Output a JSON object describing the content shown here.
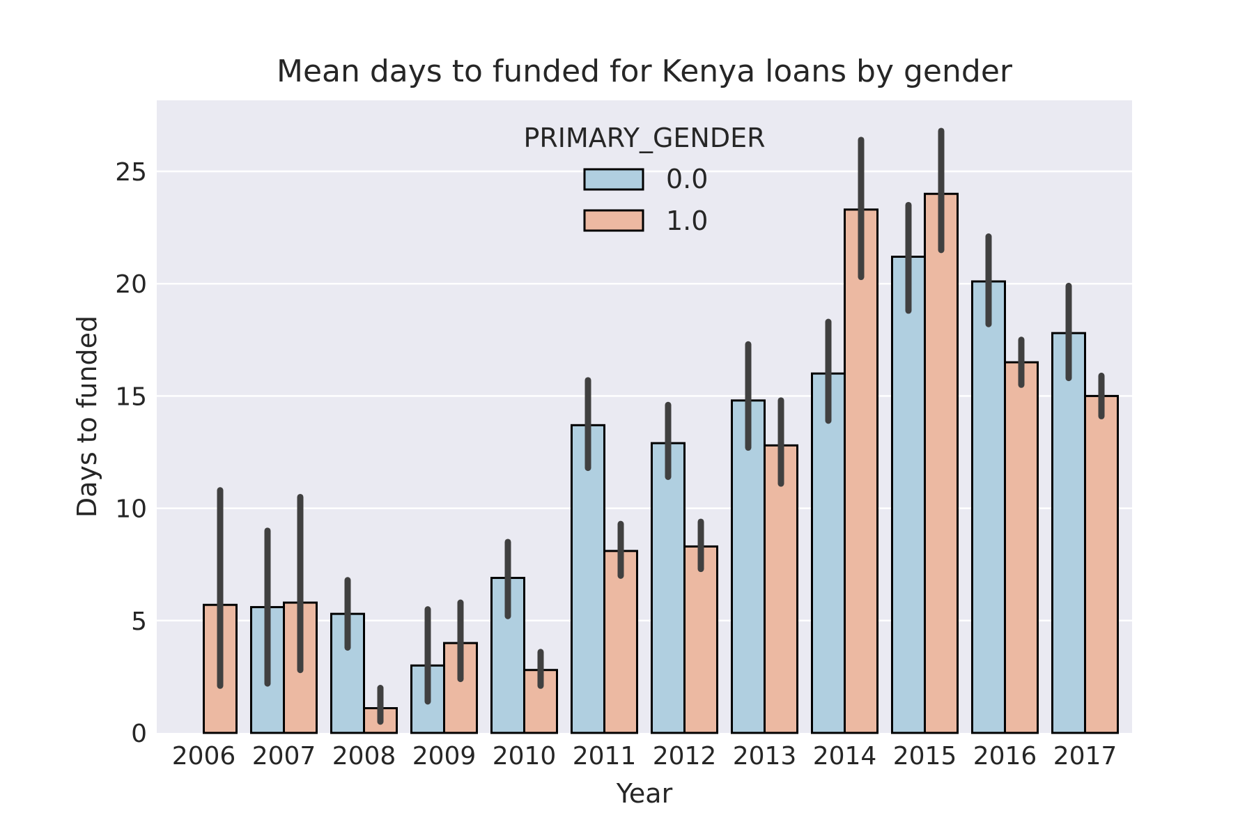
{
  "chart_data": {
    "type": "bar",
    "title": "Mean days to funded for Kenya loans by gender",
    "xlabel": "Year",
    "ylabel": "Days to funded",
    "categories": [
      "2006",
      "2007",
      "2008",
      "2009",
      "2010",
      "2011",
      "2012",
      "2013",
      "2014",
      "2015",
      "2016",
      "2017"
    ],
    "ylim": [
      0,
      28
    ],
    "yticks": [
      0,
      5,
      10,
      15,
      20,
      25
    ],
    "grid": true,
    "legend": {
      "title": "PRIMARY_GENDER",
      "placement": "top-center"
    },
    "series": [
      {
        "name": "0.0",
        "color": "#b0cfe0",
        "values": [
          null,
          5.6,
          5.3,
          3.0,
          6.9,
          13.7,
          12.9,
          14.8,
          16.0,
          21.2,
          20.1,
          17.8
        ],
        "ci_low": [
          null,
          2.2,
          3.8,
          1.4,
          5.2,
          11.8,
          11.4,
          12.7,
          13.9,
          18.8,
          18.2,
          15.8
        ],
        "ci_high": [
          null,
          9.0,
          6.8,
          5.5,
          8.5,
          15.7,
          14.6,
          17.3,
          18.3,
          23.5,
          22.1,
          19.9
        ]
      },
      {
        "name": "1.0",
        "color": "#ecb9a2",
        "values": [
          5.7,
          5.8,
          1.1,
          4.0,
          2.8,
          8.1,
          8.3,
          12.8,
          23.3,
          24.0,
          16.5,
          15.0
        ],
        "ci_low": [
          2.1,
          2.8,
          0.5,
          2.4,
          2.1,
          7.0,
          7.3,
          11.1,
          20.3,
          21.5,
          15.5,
          14.1
        ],
        "ci_high": [
          10.8,
          10.5,
          2.0,
          5.8,
          3.6,
          9.3,
          9.4,
          14.8,
          26.4,
          26.8,
          17.5,
          15.9
        ]
      }
    ]
  }
}
